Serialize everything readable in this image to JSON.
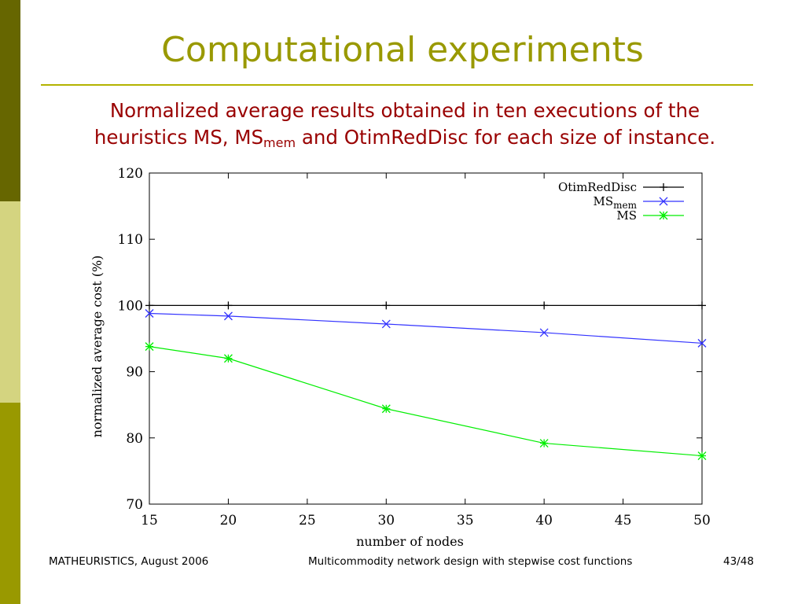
{
  "slide": {
    "title": "Computational experiments",
    "subtitle_line1": "Normalized average results obtained in ten executions of the",
    "subtitle_line2_pre": "heuristics MS, MS",
    "subtitle_line2_sub": "mem",
    "subtitle_line2_post": " and OtimRedDisc for each size of instance."
  },
  "footer": {
    "left": "MATHEURISTICS, August 2006",
    "center": "Multicommodity network design with stepwise cost functions",
    "page": "43/48"
  },
  "colors": {
    "sidebar_top": "#666600",
    "sidebar_mid": "#d4d480",
    "sidebar_bottom": "#999900",
    "title": "#999900",
    "subtitle": "#990000"
  },
  "chart_data": {
    "type": "line",
    "xlabel": "number of nodes",
    "ylabel": "normalized average cost (%)",
    "xlim": [
      15,
      50
    ],
    "ylim": [
      70,
      120
    ],
    "xticks": [
      15,
      20,
      25,
      30,
      35,
      40,
      45,
      50
    ],
    "yticks": [
      70,
      80,
      90,
      100,
      110,
      120
    ],
    "grid": false,
    "legend_position": "top-right",
    "series": [
      {
        "name": "OtimRedDisc",
        "color": "#000000",
        "marker": "plus",
        "x": [
          15,
          20,
          30,
          40,
          50
        ],
        "y": [
          100,
          100,
          100,
          100,
          100
        ]
      },
      {
        "name": "MS",
        "name_sub": "mem",
        "color": "#3333ff",
        "marker": "cross",
        "x": [
          15,
          20,
          30,
          40,
          50
        ],
        "y": [
          98.8,
          98.4,
          97.2,
          95.9,
          94.3
        ]
      },
      {
        "name": "MS",
        "color": "#00ee00",
        "marker": "star",
        "x": [
          15,
          20,
          30,
          40,
          50
        ],
        "y": [
          93.8,
          92.0,
          84.4,
          79.2,
          77.3
        ]
      }
    ]
  }
}
